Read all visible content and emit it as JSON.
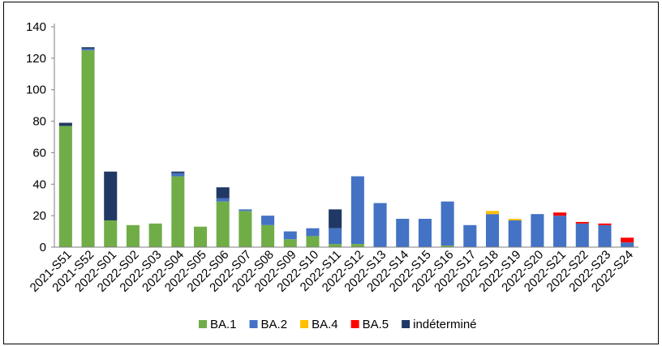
{
  "chart_data": {
    "type": "bar",
    "stacked": true,
    "categories": [
      "2021-S51",
      "2021-S52",
      "2022-S01",
      "2022-S02",
      "2022-S03",
      "2022-S04",
      "2022-S05",
      "2022-S06",
      "2022-S07",
      "2022-S08",
      "2022-S09",
      "2022-S10",
      "2022-S11",
      "2022-S12",
      "2022-S13",
      "2022-S14",
      "2022-S15",
      "2022-S16",
      "2022-S17",
      "2022-S18",
      "2022-S19",
      "2022-S20",
      "2022-S21",
      "2022-S22",
      "2022-S23",
      "2022-S24"
    ],
    "series": [
      {
        "name": "BA.1",
        "color": "#70AD47",
        "values": [
          77,
          125,
          17,
          14,
          15,
          45,
          13,
          29,
          23,
          14,
          5,
          7,
          2,
          2,
          0,
          0,
          0,
          1,
          0,
          0,
          0,
          0,
          0,
          0,
          0,
          0
        ]
      },
      {
        "name": "BA.2",
        "color": "#4472C4",
        "values": [
          0,
          1,
          0,
          0,
          0,
          2,
          0,
          2,
          1,
          6,
          5,
          5,
          10,
          43,
          28,
          18,
          18,
          28,
          14,
          21,
          17,
          21,
          20,
          15,
          14,
          3
        ]
      },
      {
        "name": "BA.4",
        "color": "#FFC000",
        "values": [
          0,
          0,
          0,
          0,
          0,
          0,
          0,
          0,
          0,
          0,
          0,
          0,
          0,
          0,
          0,
          0,
          0,
          0,
          0,
          2,
          1,
          0,
          0,
          0,
          0,
          0
        ]
      },
      {
        "name": "BA.5",
        "color": "#FF0000",
        "values": [
          0,
          0,
          0,
          0,
          0,
          0,
          0,
          0,
          0,
          0,
          0,
          0,
          0,
          0,
          0,
          0,
          0,
          0,
          0,
          0,
          0,
          0,
          2,
          1,
          1,
          3
        ]
      },
      {
        "name": "indéterminé",
        "color": "#203864",
        "values": [
          2,
          1,
          31,
          0,
          0,
          1,
          0,
          7,
          0,
          0,
          0,
          0,
          12,
          0,
          0,
          0,
          0,
          0,
          0,
          0,
          0,
          0,
          0,
          0,
          0,
          0
        ]
      }
    ],
    "ylim": [
      0,
      140
    ],
    "yticks": [
      0,
      20,
      40,
      60,
      80,
      100,
      120,
      140
    ],
    "grid": false,
    "legend_position": "bottom",
    "title": "",
    "xlabel": "",
    "ylabel": ""
  }
}
